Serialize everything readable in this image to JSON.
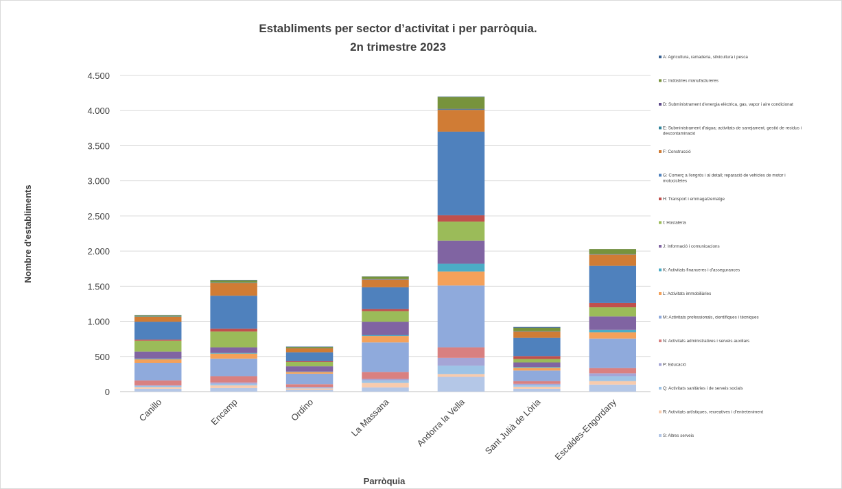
{
  "chart_data": {
    "type": "bar",
    "stacked": true,
    "title": [
      "Establiments per sector d’activitat i per parròquia.",
      "2n trimestre 2023"
    ],
    "xlabel": "Parròquia",
    "ylabel": "Nombre d'establiments",
    "ylim": [
      0,
      4500
    ],
    "yticks": [
      0,
      500,
      1000,
      1500,
      2000,
      2500,
      3000,
      3500,
      4000,
      4500
    ],
    "ytick_labels": [
      "0",
      "500",
      "1.000",
      "1.500",
      "2.000",
      "2.500",
      "3.000",
      "3.500",
      "4.000",
      "4.500"
    ],
    "grid": true,
    "legend_position": "right",
    "categories": [
      "Canillo",
      "Encamp",
      "Ordino",
      "La Massana",
      "Andorra la Vella",
      "Sant Julià de Lòria",
      "Escaldes-Engordany"
    ],
    "series": [
      {
        "name": "S: Altres serveis",
        "color": "#b4c7e7",
        "values": [
          40,
          50,
          25,
          60,
          210,
          40,
          100
        ]
      },
      {
        "name": "R: Activitats artístiques, recreatives i d'entreteniment",
        "color": "#f8cbad",
        "values": [
          25,
          40,
          20,
          65,
          40,
          30,
          50
        ]
      },
      {
        "name": "Q: Activitats sanitàries i de serveis socials",
        "color": "#9dc3e6",
        "values": [
          15,
          20,
          10,
          35,
          120,
          25,
          70
        ]
      },
      {
        "name": "P: Educació",
        "color": "#a5a5d6",
        "values": [
          10,
          20,
          10,
          20,
          110,
          15,
          40
        ]
      },
      {
        "name": "N: Activitats administratives i serveis auxiliars",
        "color": "#d98080",
        "values": [
          70,
          90,
          40,
          100,
          150,
          40,
          75
        ]
      },
      {
        "name": "M: Activitats professionals, científiques i tècniques",
        "color": "#8faadc",
        "values": [
          250,
          250,
          150,
          420,
          880,
          150,
          420
        ]
      },
      {
        "name": "L: Activitats immobiliàries",
        "color": "#f4a15a",
        "values": [
          50,
          70,
          25,
          90,
          200,
          40,
          90
        ]
      },
      {
        "name": "K: Activitats financeres i d'assegurances",
        "color": "#4bacc6",
        "values": [
          10,
          10,
          5,
          15,
          110,
          10,
          35
        ]
      },
      {
        "name": "J: Informació i comunicacions",
        "color": "#8064a2",
        "values": [
          100,
          80,
          75,
          190,
          330,
          65,
          190
        ]
      },
      {
        "name": "I: Hostaleria",
        "color": "#9bbb59",
        "values": [
          155,
          225,
          60,
          150,
          270,
          50,
          130
        ]
      },
      {
        "name": "H: Transport i emmagatzematge",
        "color": "#c0504d",
        "values": [
          15,
          40,
          15,
          30,
          90,
          40,
          60
        ]
      },
      {
        "name": "G: Comerç a l'engròs i al detall; reparació de vehicles de motor i motocicletes",
        "color": "#4f81bd",
        "values": [
          255,
          470,
          125,
          310,
          1190,
          260,
          530
        ]
      },
      {
        "name": "F: Construcció",
        "color": "#d07c35",
        "values": [
          70,
          180,
          55,
          110,
          310,
          90,
          160
        ]
      },
      {
        "name": "E: Subministrament d'aigua; activitats de sanejament, gestió de residus i descontaminació",
        "color": "#31859c",
        "values": [
          3,
          5,
          2,
          4,
          8,
          3,
          5
        ]
      },
      {
        "name": "D: Subministrament d'energia elèctrica, gas, vapor i aire condicionat",
        "color": "#5f4b8b",
        "values": [
          2,
          3,
          2,
          3,
          7,
          2,
          4
        ]
      },
      {
        "name": "C: Indústries manufactureres",
        "color": "#77933c",
        "values": [
          15,
          30,
          15,
          35,
          170,
          50,
          70
        ]
      },
      {
        "name": "A: Agricultura, ramaderia, silvicultura i pesca",
        "color": "#376092",
        "values": [
          5,
          7,
          6,
          3,
          5,
          10,
          1
        ]
      }
    ]
  }
}
